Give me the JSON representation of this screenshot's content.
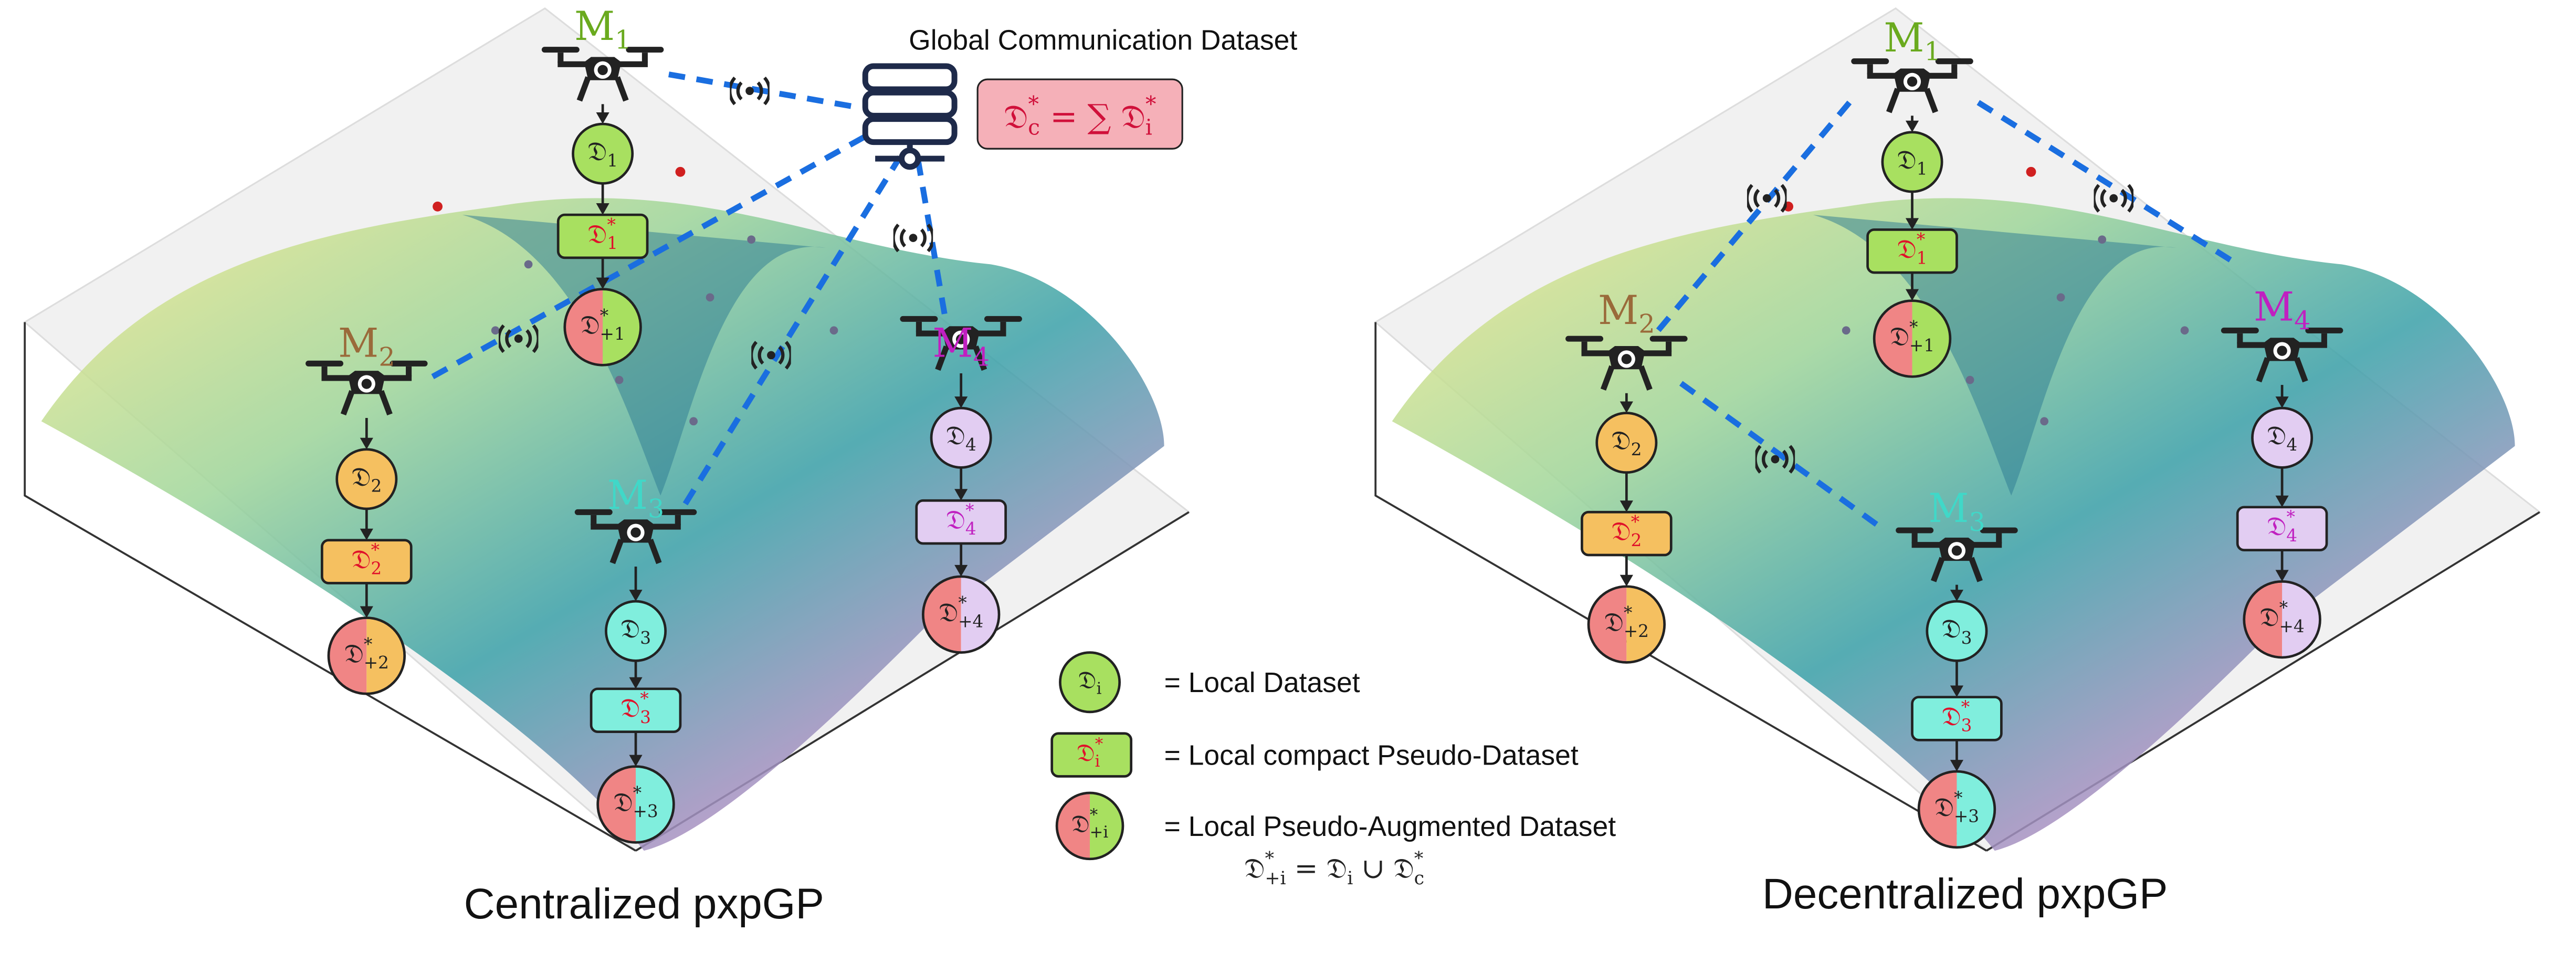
{
  "server": {
    "title": "Global Communication Dataset",
    "formula": [
      {
        "base": "𝔇",
        "sup": "*",
        "sub": "c"
      },
      "=",
      "∑",
      {
        "base": "𝔇",
        "sup": "*",
        "sub": "i"
      }
    ]
  },
  "agents": [
    {
      "name": {
        "base": "M",
        "sub": "1"
      },
      "local": {
        "base": "𝔇",
        "sub": "1"
      },
      "pseudo": {
        "base": "𝔇",
        "sup": "*",
        "sub": "1"
      },
      "augmented": {
        "base": "𝔇",
        "sup": "*",
        "sub": "+1"
      }
    },
    {
      "name": {
        "base": "M",
        "sub": "2"
      },
      "local": {
        "base": "𝔇",
        "sub": "2"
      },
      "pseudo": {
        "base": "𝔇",
        "sup": "*",
        "sub": "2"
      },
      "augmented": {
        "base": "𝔇",
        "sup": "*",
        "sub": "+2"
      }
    },
    {
      "name": {
        "base": "M",
        "sub": "3"
      },
      "local": {
        "base": "𝔇",
        "sub": "3"
      },
      "pseudo": {
        "base": "𝔇",
        "sup": "*",
        "sub": "3"
      },
      "augmented": {
        "base": "𝔇",
        "sup": "*",
        "sub": "+3"
      }
    },
    {
      "name": {
        "base": "M",
        "sub": "4"
      },
      "local": {
        "base": "𝔇",
        "sub": "4"
      },
      "pseudo": {
        "base": "𝔇",
        "sup": "*",
        "sub": "4"
      },
      "augmented": {
        "base": "𝔇",
        "sup": "*",
        "sub": "+4"
      }
    }
  ],
  "legend": {
    "items": [
      {
        "symbol": {
          "base": "𝔇",
          "sub": "i"
        },
        "text": "= Local Dataset"
      },
      {
        "symbol": {
          "base": "𝔇",
          "sup": "*",
          "sub": "i"
        },
        "text": "= Local compact Pseudo-Dataset"
      },
      {
        "symbol": {
          "base": "𝔇",
          "sup": "*",
          "sub": "+i"
        },
        "text": "= Local Pseudo-Augmented Dataset"
      }
    ],
    "equation": [
      {
        "base": "𝔇",
        "sup": "*",
        "sub": "+i"
      },
      "=",
      {
        "base": "𝔇",
        "sub": "i"
      },
      "∪",
      {
        "base": "𝔇",
        "sup": "*",
        "sub": "c"
      }
    ]
  },
  "panels": [
    {
      "title": "Centralized pxpGP"
    },
    {
      "title": "Decentralized pxpGP"
    }
  ]
}
